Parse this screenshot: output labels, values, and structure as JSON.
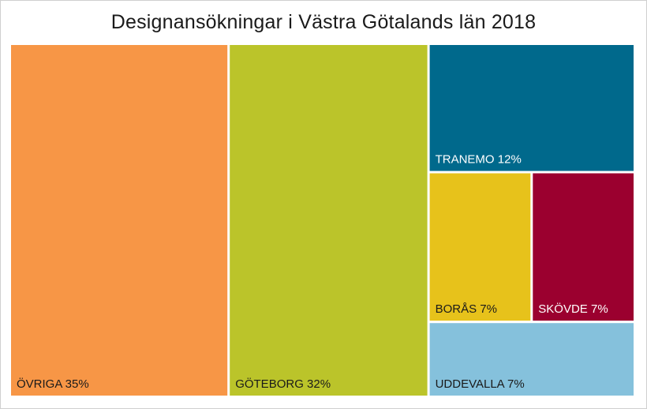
{
  "chart_data": {
    "type": "treemap",
    "title": "Designansökningar i Västra Götalands län 2018",
    "items": [
      {
        "label": "ÖVRIGA 35%",
        "value": 35,
        "color": "#F79646",
        "text_color": "#1a1a1a"
      },
      {
        "label": "GÖTEBORG 32%",
        "value": 32,
        "color": "#BBC42A",
        "text_color": "#1a1a1a"
      },
      {
        "label": "TRANEMO 12%",
        "value": 12,
        "color": "#00698C",
        "text_color": "#ffffff"
      },
      {
        "label": "BORÅS 7%",
        "value": 7,
        "color": "#E7C21B",
        "text_color": "#1a1a1a"
      },
      {
        "label": "SKÖVDE 7%",
        "value": 7,
        "color": "#9B002F",
        "text_color": "#ffffff"
      },
      {
        "label": "UDDEVALLA 7%",
        "value": 7,
        "color": "#85C1DC",
        "text_color": "#1a1a1a"
      }
    ]
  }
}
